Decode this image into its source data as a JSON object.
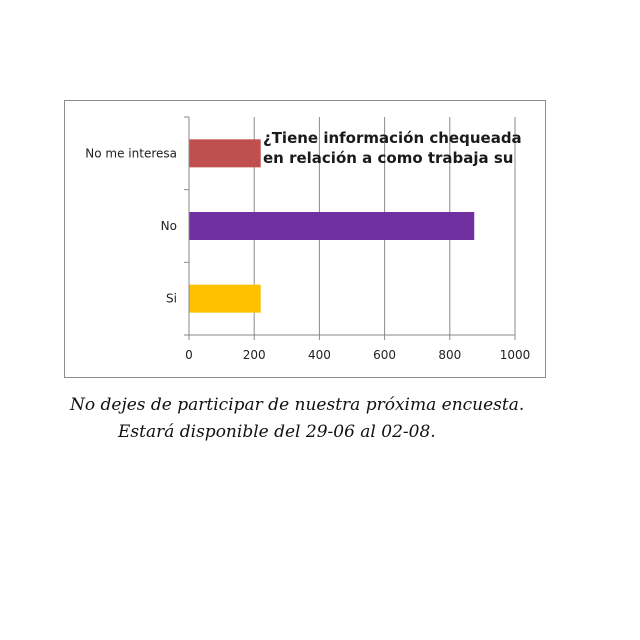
{
  "chart_data": {
    "type": "bar",
    "orientation": "horizontal",
    "title_lines": [
      "¿Tiene información chequeada",
      "en relación a como trabaja su"
    ],
    "categories": [
      "No me interesa",
      "No",
      "Si"
    ],
    "values": [
      220,
      875,
      220
    ],
    "colors": [
      "#c0504d",
      "#7030a0",
      "#ffc000"
    ],
    "xlim": [
      0,
      1000
    ],
    "x_ticks": [
      "0",
      "200",
      "400",
      "600",
      "800",
      "1000"
    ],
    "grid": "vertical",
    "legend": "none"
  },
  "caption": {
    "line1": "No dejes de participar de nuestra próxima encuesta.",
    "line2": "Estará disponible del 29-06 al 02-08."
  }
}
